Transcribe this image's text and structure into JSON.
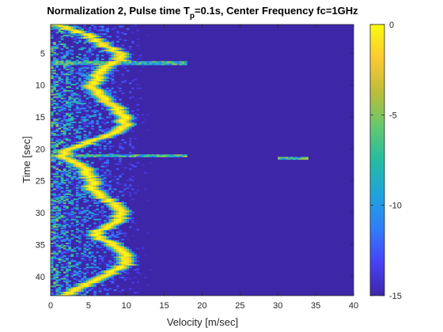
{
  "chart_data": {
    "type": "heatmap",
    "title": {
      "prefix": "Normalization 2, Pulse time T",
      "subscript": "p",
      "suffix": "=0.1s, Center Frequency fc=1GHz"
    },
    "xlabel": "Velocity [m/sec]",
    "ylabel": "Time [sec]",
    "xlim": [
      0,
      40
    ],
    "ylim": [
      0.5,
      43
    ],
    "y_reversed": true,
    "xticks": [
      "0",
      "5",
      "10",
      "15",
      "20",
      "25",
      "30",
      "35",
      "40"
    ],
    "yticks": [
      "5",
      "10",
      "15",
      "20",
      "25",
      "30",
      "35",
      "40"
    ],
    "colorbar": {
      "range": [
        -15,
        0
      ],
      "ticks": [
        "0",
        "-5",
        "-10",
        "-15"
      ],
      "colormap": "parula",
      "stops": [
        "#3e26a8",
        "#4743f8",
        "#2f7ffa",
        "#1fa5db",
        "#25bca1",
        "#65c96d",
        "#bcbd3a",
        "#fcc934",
        "#f9fb0e"
      ]
    },
    "background_color": "#3e26a8",
    "ridge": {
      "description": "dominant velocity ridge vs time (values at 0 dB)",
      "time": [
        0.5,
        2,
        4,
        5,
        6,
        7,
        8,
        9,
        10,
        11,
        12,
        13,
        14,
        15,
        16,
        17,
        18,
        19,
        20,
        21,
        22,
        23,
        24,
        25,
        26,
        27,
        28,
        29,
        30,
        31,
        32,
        33,
        34,
        35,
        36,
        37,
        38,
        39,
        40,
        41,
        42,
        43
      ],
      "velocity": [
        0.5,
        4.5,
        7.5,
        9.0,
        9.3,
        7.5,
        6.5,
        6.0,
        5.5,
        5.8,
        6.8,
        8.0,
        9.0,
        9.5,
        9.8,
        9.0,
        7.5,
        5.0,
        2.5,
        1.5,
        3.0,
        4.5,
        5.0,
        5.5,
        5.5,
        6.0,
        7.5,
        9.0,
        9.5,
        9.0,
        8.0,
        6.0,
        6.5,
        8.5,
        9.5,
        10.0,
        10.0,
        8.5,
        7.0,
        5.0,
        3.5,
        2.0
      ]
    },
    "notable_features": [
      {
        "time": 6.5,
        "velocity_range": [
          0,
          18
        ],
        "note": "horizontal bright streak"
      },
      {
        "time": 21,
        "velocity_range": [
          0,
          18
        ],
        "note": "horizontal bright streak"
      },
      {
        "time": 21.5,
        "velocity_range": [
          30,
          34
        ],
        "note": "faint streak"
      }
    ]
  }
}
